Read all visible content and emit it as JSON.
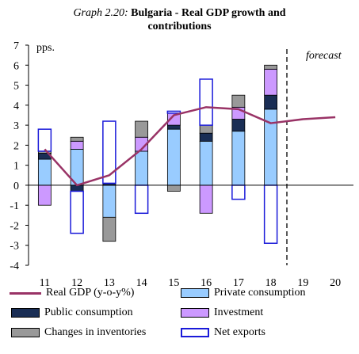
{
  "header": {
    "graph_no": "Graph 2.20:",
    "title_line1": "Bulgaria - Real GDP growth and",
    "title_line2": "contributions"
  },
  "chart_data": {
    "type": "bar",
    "stacked": true,
    "ylabel": "pps.",
    "ylim": [
      -4,
      7
    ],
    "yticks": [
      -4,
      -3,
      -2,
      -1,
      0,
      1,
      2,
      3,
      4,
      5,
      6,
      7
    ],
    "categories": [
      "11",
      "12",
      "13",
      "14",
      "15",
      "16",
      "17",
      "18",
      "19",
      "20"
    ],
    "forecast_label": "forecast",
    "forecast_from": "19",
    "grid": false,
    "legend_position": "bottom",
    "series": [
      {
        "name": "Private consumption",
        "kind": "bar",
        "color": "#99ccff",
        "values": [
          1.3,
          1.8,
          -1.6,
          1.7,
          2.8,
          2.2,
          2.7,
          3.8,
          null,
          null
        ]
      },
      {
        "name": "Public consumption",
        "kind": "bar",
        "color": "#1a2e55",
        "values": [
          0.3,
          -0.3,
          0.1,
          0.0,
          0.2,
          0.4,
          0.6,
          0.7,
          null,
          null
        ]
      },
      {
        "name": "Investment",
        "kind": "bar",
        "color": "#cc99ff",
        "values": [
          -1.0,
          0.4,
          0.0,
          0.7,
          0.6,
          -1.4,
          0.6,
          1.3,
          null,
          null
        ]
      },
      {
        "name": "Changes in inventories",
        "kind": "bar",
        "color": "#999999",
        "values": [
          0.1,
          0.2,
          -1.2,
          0.8,
          -0.3,
          0.4,
          0.6,
          0.2,
          null,
          null
        ]
      },
      {
        "name": "Net exports",
        "kind": "bar",
        "color": "#ffffff",
        "values": [
          1.1,
          -2.1,
          3.1,
          -1.4,
          0.1,
          2.3,
          -0.7,
          -2.9,
          null,
          null
        ]
      },
      {
        "name": "Real GDP (y-o-y%)",
        "kind": "line",
        "color": "#993366",
        "values": [
          1.8,
          0.0,
          0.5,
          1.8,
          3.5,
          3.9,
          3.8,
          3.1,
          3.3,
          3.4
        ]
      }
    ]
  },
  "legend": {
    "items": [
      {
        "label": "Real GDP (y-o-y%)",
        "type": "line",
        "color": "#993366",
        "border": "#993366"
      },
      {
        "label": "Private consumption",
        "type": "box",
        "color": "#99ccff",
        "border": "#000000"
      },
      {
        "label": "Public consumption",
        "type": "box",
        "color": "#1a2e55",
        "border": "#000000"
      },
      {
        "label": "Investment",
        "type": "box",
        "color": "#cc99ff",
        "border": "#000000"
      },
      {
        "label": "Changes in inventories",
        "type": "box",
        "color": "#999999",
        "border": "#000000"
      },
      {
        "label": "Net exports",
        "type": "box",
        "color": "#ffffff",
        "border": "#1a1ad9"
      }
    ]
  }
}
